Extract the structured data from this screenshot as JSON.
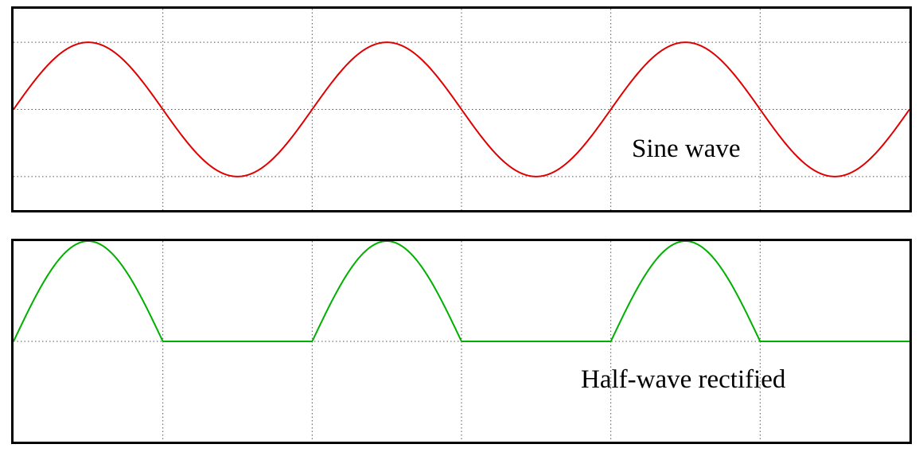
{
  "chart_data": [
    {
      "type": "line",
      "annotation": "Sine wave",
      "function": "sine",
      "cycles": 3,
      "x": [
        0,
        0.5,
        1,
        1.5,
        2,
        2.5,
        3,
        3.5,
        4,
        4.5,
        5,
        5.5,
        6
      ],
      "series": [
        {
          "values": [
            0,
            1,
            0,
            -1,
            0,
            1,
            0,
            -1,
            0,
            1,
            0,
            -1,
            0
          ],
          "color": "#e00000"
        }
      ],
      "xlim": [
        0,
        6
      ],
      "ylim": [
        -1.5,
        1.5
      ],
      "grid": true,
      "grid_x": [
        0,
        1,
        2,
        3,
        4,
        5,
        6
      ],
      "grid_y": [
        -1,
        0,
        1
      ],
      "axis_labels_shown": false
    },
    {
      "type": "line",
      "annotation": "Half-wave rectified",
      "function": "half-wave-rectified-sine",
      "cycles": 3,
      "x": [
        0,
        0.5,
        1,
        1.5,
        2,
        2.5,
        3,
        3.5,
        4,
        4.5,
        5,
        5.5,
        6
      ],
      "series": [
        {
          "values": [
            0,
            1,
            0,
            0,
            0,
            1,
            0,
            0,
            0,
            1,
            0,
            0,
            0
          ],
          "color": "#00b000"
        }
      ],
      "xlim": [
        0,
        6
      ],
      "ylim": [
        -1,
        1
      ],
      "grid": true,
      "grid_x": [
        0,
        1,
        2,
        3,
        4,
        5,
        6
      ],
      "grid_y": [
        -1,
        0,
        1
      ],
      "axis_labels_shown": false
    }
  ]
}
